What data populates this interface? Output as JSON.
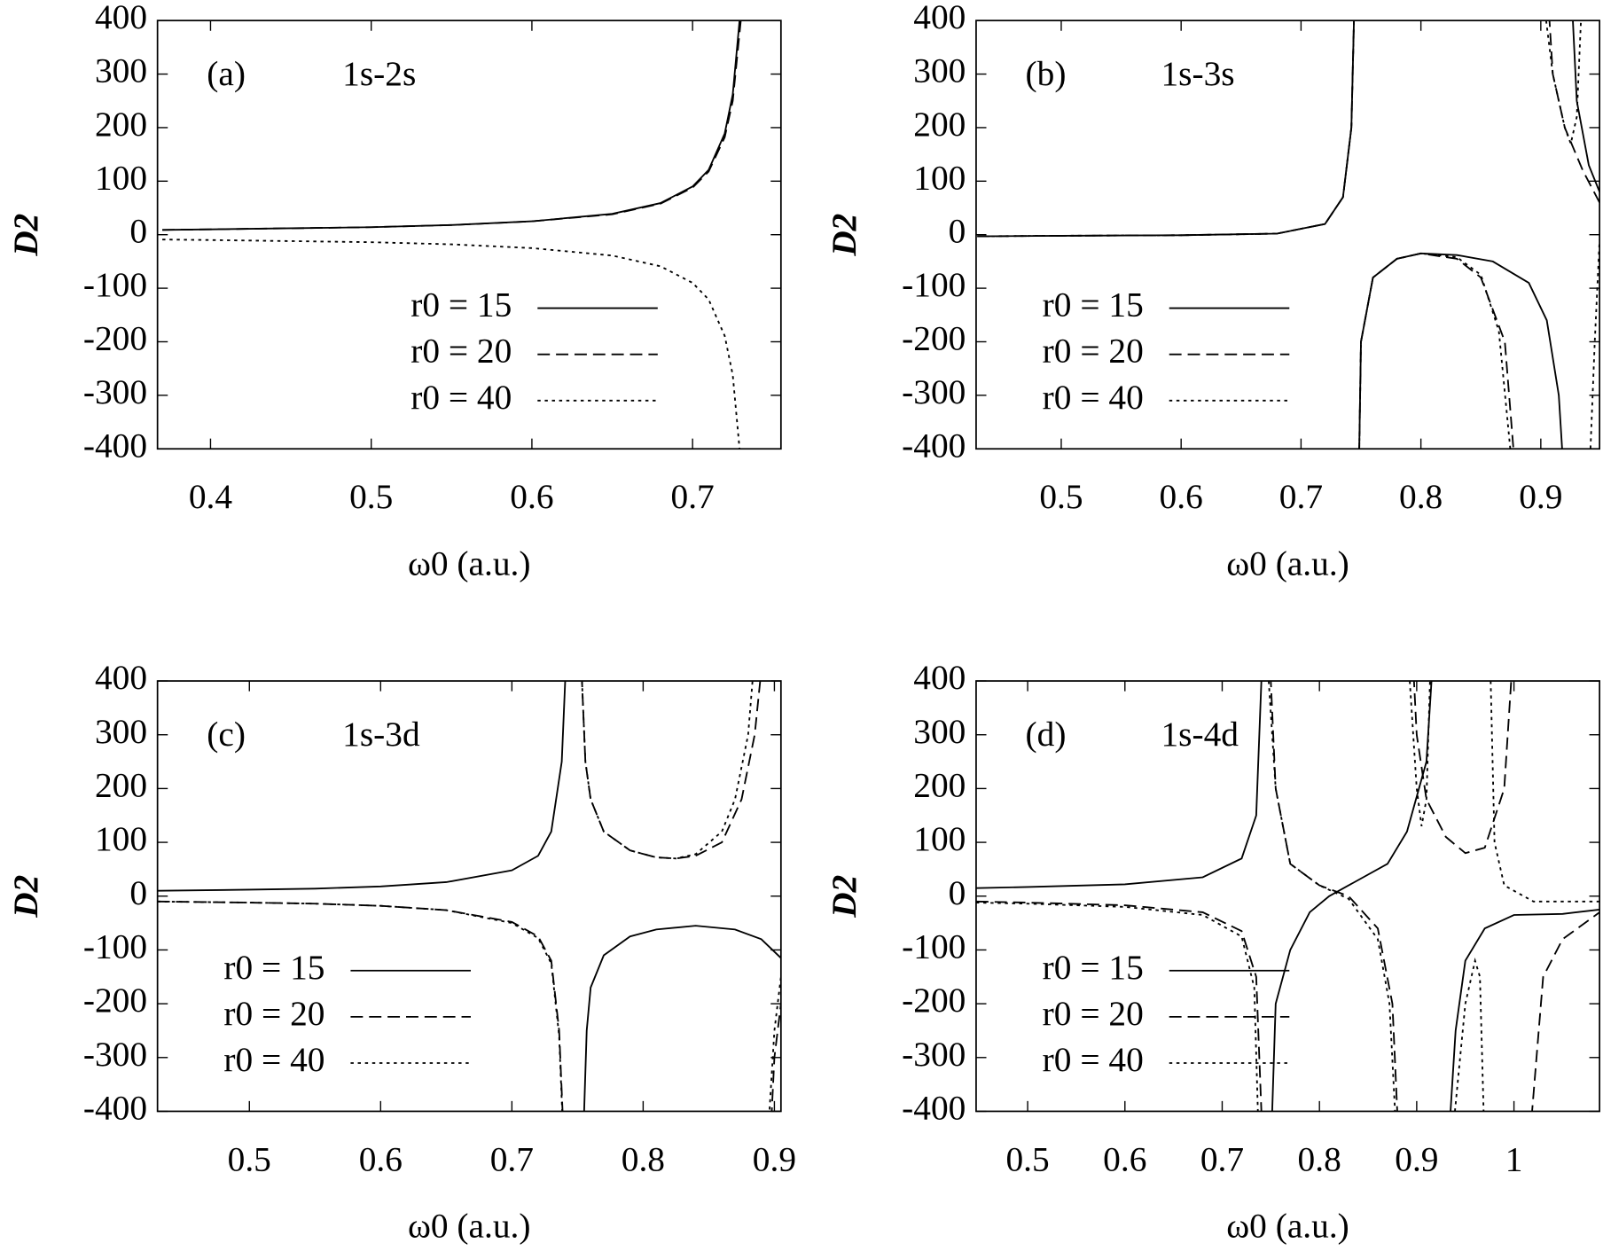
{
  "chart_data": [
    {
      "type": "line",
      "label": "(a)",
      "annotation": "1s-2s",
      "x_label": "ω0 (a.u.)",
      "y_label": "D2",
      "xlim": [
        0.367,
        0.755
      ],
      "ylim": [
        -400,
        400
      ],
      "xticks": [
        0.4,
        0.5,
        0.6,
        0.7
      ],
      "yticks": [
        -400,
        -300,
        -200,
        -100,
        0,
        100,
        200,
        300,
        400
      ],
      "legend_position": "lower right",
      "series": [
        {
          "name": "r0 = 15",
          "color": "#000000",
          "dash": "solid",
          "x": [
            0.37,
            0.4,
            0.45,
            0.5,
            0.55,
            0.6,
            0.65,
            0.68,
            0.7,
            0.71,
            0.72,
            0.725,
            0.73,
            0.733
          ],
          "values": [
            9,
            10,
            12,
            14,
            18,
            25,
            39,
            59,
            90,
            121,
            189,
            262,
            425,
            680
          ]
        },
        {
          "name": "r0 = 20",
          "color": "#000000",
          "dash": "dashed",
          "x": [
            0.37,
            0.4,
            0.45,
            0.5,
            0.55,
            0.6,
            0.65,
            0.68,
            0.7,
            0.71,
            0.72,
            0.725,
            0.73,
            0.733
          ],
          "values": [
            9,
            10,
            12,
            14,
            18,
            25,
            38,
            58,
            88,
            118,
            182,
            250,
            400,
            620
          ]
        },
        {
          "name": "r0 = 40",
          "color": "#000000",
          "dash": "dotted",
          "x": [
            0.37,
            0.4,
            0.45,
            0.5,
            0.55,
            0.6,
            0.65,
            0.68,
            0.7,
            0.71,
            0.72,
            0.725,
            0.73,
            0.733
          ],
          "values": [
            -9,
            -10,
            -12,
            -14,
            -18,
            -25,
            -39,
            -59,
            -90,
            -121,
            -189,
            -262,
            -425,
            -680
          ]
        }
      ]
    },
    {
      "type": "line",
      "label": "(b)",
      "annotation": "1s-3s",
      "x_label": "ω0 (a.u.)",
      "y_label": "D2",
      "xlim": [
        0.429,
        0.949
      ],
      "ylim": [
        -400,
        400
      ],
      "xticks": [
        0.5,
        0.6,
        0.7,
        0.8,
        0.9
      ],
      "yticks": [
        -400,
        -300,
        -200,
        -100,
        0,
        100,
        200,
        300,
        400
      ],
      "legend_position": "lower left",
      "series": [
        {
          "name": "r0 = 15",
          "color": "#000000",
          "dash": "solid",
          "x": [
            0.43,
            0.5,
            0.6,
            0.68,
            0.72,
            0.735,
            0.742,
            0.745,
            0.7465,
            0.748,
            0.75,
            0.76,
            0.78,
            0.8,
            0.83,
            0.86,
            0.89,
            0.905,
            0.915,
            0.92,
            0.9225,
            0.925,
            0.93,
            0.94,
            0.949
          ],
          "values": [
            -3,
            -2,
            -1,
            2,
            20,
            70,
            200,
            480,
            null,
            -480,
            -200,
            -80,
            -45,
            -35,
            -38,
            -50,
            -90,
            -160,
            -300,
            -480,
            null,
            480,
            250,
            130,
            80
          ]
        },
        {
          "name": "r0 = 20",
          "color": "#000000",
          "dash": "dashed",
          "x": [
            0.43,
            0.5,
            0.6,
            0.68,
            0.72,
            0.735,
            0.742,
            0.745,
            0.7465,
            0.748,
            0.75,
            0.76,
            0.78,
            0.8,
            0.83,
            0.85,
            0.87,
            0.88,
            0.893,
            0.905,
            0.91,
            0.92,
            0.935,
            0.949
          ],
          "values": [
            -3,
            -2,
            -1,
            2,
            20,
            70,
            200,
            480,
            null,
            -480,
            -200,
            -80,
            -45,
            -35,
            -45,
            -80,
            -200,
            -480,
            null,
            480,
            300,
            200,
            120,
            60
          ]
        },
        {
          "name": "r0 = 40",
          "color": "#000000",
          "dash": "dotted",
          "x": [
            0.43,
            0.5,
            0.6,
            0.68,
            0.72,
            0.735,
            0.742,
            0.745,
            0.7465,
            0.748,
            0.75,
            0.76,
            0.78,
            0.8,
            0.83,
            0.85,
            0.865,
            0.878,
            0.89,
            0.9,
            0.91,
            0.92,
            0.925,
            0.93,
            0.935,
            0.9375,
            0.94,
            0.945,
            0.949
          ],
          "values": [
            -3,
            -2,
            -1,
            2,
            20,
            70,
            200,
            480,
            null,
            -480,
            -200,
            -80,
            -45,
            -35,
            -42,
            -75,
            -180,
            -480,
            null,
            480,
            300,
            200,
            170,
            220,
            480,
            null,
            -480,
            -200,
            -10
          ]
        }
      ]
    },
    {
      "type": "line",
      "label": "(c)",
      "annotation": "1s-3d",
      "x_label": "ω0 (a.u.)",
      "y_label": "D2",
      "xlim": [
        0.43,
        0.905
      ],
      "ylim": [
        -400,
        400
      ],
      "xticks": [
        0.5,
        0.6,
        0.7,
        0.8,
        0.9
      ],
      "yticks": [
        -400,
        -300,
        -200,
        -100,
        0,
        100,
        200,
        300,
        400
      ],
      "legend_position": "lower left",
      "series": [
        {
          "name": "r0 = 15",
          "color": "#000000",
          "dash": "solid",
          "x": [
            0.43,
            0.5,
            0.55,
            0.6,
            0.65,
            0.7,
            0.72,
            0.73,
            0.738,
            0.742,
            0.748,
            0.754,
            0.757,
            0.76,
            0.77,
            0.79,
            0.81,
            0.84,
            0.87,
            0.89,
            0.905
          ],
          "values": [
            10,
            12,
            14,
            18,
            26,
            48,
            75,
            120,
            250,
            480,
            null,
            -480,
            -250,
            -170,
            -110,
            -75,
            -62,
            -55,
            -62,
            -80,
            -115
          ]
        },
        {
          "name": "r0 = 20",
          "color": "#000000",
          "dash": "dashed",
          "x": [
            0.43,
            0.5,
            0.55,
            0.6,
            0.65,
            0.7,
            0.72,
            0.73,
            0.736,
            0.74,
            0.746,
            0.752,
            0.756,
            0.76,
            0.77,
            0.79,
            0.81,
            0.825,
            0.84,
            0.86,
            0.875,
            0.885,
            0.89,
            0.894,
            0.897,
            0.9,
            0.905
          ],
          "values": [
            -10,
            -12,
            -14,
            -18,
            -26,
            -48,
            -75,
            -120,
            -250,
            -480,
            null,
            480,
            250,
            180,
            120,
            85,
            72,
            70,
            75,
            100,
            180,
            300,
            420,
            null,
            -450,
            -300,
            -200
          ]
        },
        {
          "name": "r0 = 40",
          "color": "#000000",
          "dash": "dotted",
          "x": [
            0.43,
            0.5,
            0.55,
            0.6,
            0.65,
            0.7,
            0.72,
            0.73,
            0.736,
            0.74,
            0.746,
            0.752,
            0.756,
            0.76,
            0.77,
            0.79,
            0.81,
            0.825,
            0.84,
            0.86,
            0.87,
            0.88,
            0.886,
            0.891,
            0.895,
            0.9,
            0.905
          ],
          "values": [
            -10,
            -12,
            -14,
            -18,
            -26,
            -50,
            -78,
            -125,
            -260,
            -500,
            null,
            480,
            250,
            180,
            120,
            85,
            72,
            70,
            78,
            120,
            180,
            300,
            480,
            null,
            -450,
            -250,
            -150
          ]
        }
      ]
    },
    {
      "type": "line",
      "label": "(d)",
      "annotation": "1s-4d",
      "x_label": "ω0 (a.u.)",
      "y_label": "D2",
      "xlim": [
        0.447,
        1.088
      ],
      "ylim": [
        -400,
        400
      ],
      "xticks": [
        0.5,
        0.6,
        0.7,
        0.8,
        0.9,
        1
      ],
      "yticks": [
        -400,
        -300,
        -200,
        -100,
        0,
        100,
        200,
        300,
        400
      ],
      "legend_position": "lower left",
      "series": [
        {
          "name": "r0 = 15",
          "color": "#000000",
          "dash": "solid",
          "x": [
            0.447,
            0.5,
            0.6,
            0.68,
            0.72,
            0.735,
            0.742,
            0.746,
            0.75,
            0.755,
            0.77,
            0.79,
            0.81,
            0.83,
            0.87,
            0.89,
            0.91,
            0.918,
            0.925,
            0.932,
            0.94,
            0.95,
            0.97,
            1.0,
            1.05,
            1.088
          ],
          "values": [
            15,
            17,
            22,
            35,
            70,
            150,
            480,
            null,
            -480,
            -200,
            -100,
            -30,
            0,
            20,
            60,
            120,
            250,
            480,
            null,
            -480,
            -250,
            -120,
            -60,
            -35,
            -33,
            -25
          ]
        },
        {
          "name": "r0 = 20",
          "color": "#000000",
          "dash": "dashed",
          "x": [
            0.447,
            0.5,
            0.6,
            0.68,
            0.72,
            0.735,
            0.742,
            0.745,
            0.748,
            0.755,
            0.77,
            0.8,
            0.83,
            0.86,
            0.875,
            0.882,
            0.888,
            0.895,
            0.9,
            0.91,
            0.93,
            0.95,
            0.97,
            0.99,
            1.0,
            1.008,
            1.015,
            1.03,
            1.05,
            1.088
          ],
          "values": [
            -10,
            -12,
            -17,
            -30,
            -65,
            -150,
            -480,
            null,
            480,
            200,
            60,
            20,
            0,
            -60,
            -200,
            -480,
            null,
            480,
            300,
            180,
            110,
            80,
            90,
            200,
            480,
            null,
            -480,
            -150,
            -80,
            -30
          ]
        },
        {
          "name": "r0 = 40",
          "color": "#000000",
          "dash": "dotted",
          "x": [
            0.447,
            0.5,
            0.6,
            0.68,
            0.72,
            0.733,
            0.738,
            0.742,
            0.745,
            0.755,
            0.77,
            0.8,
            0.83,
            0.86,
            0.872,
            0.88,
            0.885,
            0.89,
            0.9,
            0.905,
            0.91,
            0.915,
            0.925,
            0.935,
            0.95,
            0.96,
            0.965,
            0.97,
            0.9725,
            0.975,
            0.98,
            0.99,
            1.02,
            1.088
          ],
          "values": [
            -12,
            -14,
            -20,
            -35,
            -75,
            -170,
            -480,
            null,
            480,
            200,
            60,
            20,
            -5,
            -80,
            -200,
            -480,
            null,
            480,
            200,
            130,
            180,
            480,
            null,
            -480,
            -200,
            -120,
            -150,
            -480,
            null,
            480,
            100,
            20,
            -10,
            -10
          ]
        }
      ]
    }
  ]
}
